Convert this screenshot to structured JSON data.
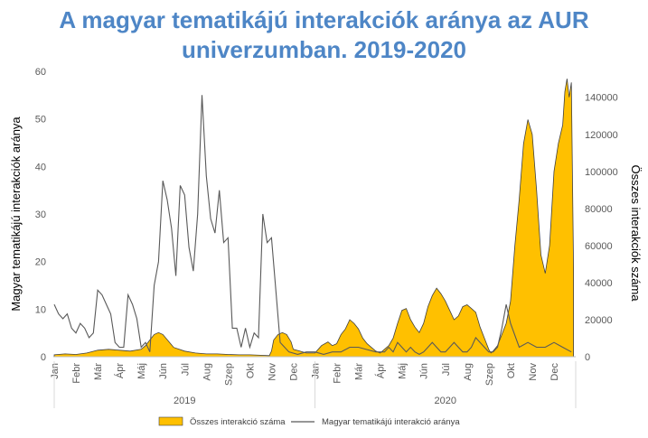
{
  "title": {
    "line1": "A magyar tematikájú interakciók aránya az AUR",
    "line2": "univerzumban. 2019-2020",
    "color": "#4E86C6"
  },
  "chart_data": {
    "type": "line",
    "ylabel_left": "Magyar tematikájú interakciók aránya",
    "ylabel_right": "Összes interakciók száma",
    "ylim_left": [
      0,
      60
    ],
    "ylim_right": [
      0,
      154000
    ],
    "yticks_left": [
      "0",
      "10",
      "20",
      "30",
      "40",
      "50",
      "60"
    ],
    "yticks_right": [
      "0",
      "20000",
      "40000",
      "60000",
      "80000",
      "100000",
      "120000",
      "140000"
    ],
    "months": [
      "Jan",
      "Febr",
      "Már",
      "Ápr",
      "Máj",
      "Jún",
      "Júl",
      "Aug",
      "Szep",
      "Okt",
      "Nov",
      "Dec",
      "Jan",
      "Febr",
      "Már",
      "Ápr",
      "Máj",
      "Jún",
      "Júl",
      "Aug",
      "Szep",
      "Okt",
      "Nov",
      "Dec"
    ],
    "years": [
      "2019",
      "2020"
    ],
    "legend_position": "bottom",
    "grid": false,
    "series": [
      {
        "name": "Összes interakció száma",
        "kind": "area",
        "axis": "right",
        "color": "#FFC000",
        "x": [
          0,
          0.5,
          1,
          1.5,
          2,
          2.5,
          3,
          3.5,
          4,
          4.2,
          4.4,
          4.6,
          4.8,
          5,
          5.5,
          6,
          6.5,
          7,
          7.5,
          8,
          8.5,
          9,
          9.5,
          9.9,
          10,
          10.1,
          10.3,
          10.5,
          10.7,
          10.9,
          11,
          11.3,
          11.6,
          12,
          12.3,
          12.6,
          12.8,
          13,
          13.2,
          13.4,
          13.6,
          13.8,
          14,
          14.2,
          14.4,
          14.6,
          14.8,
          15,
          15.2,
          15.4,
          15.6,
          15.8,
          16,
          16.2,
          16.4,
          16.6,
          16.8,
          17,
          17.2,
          17.4,
          17.6,
          17.8,
          18,
          18.2,
          18.4,
          18.6,
          18.8,
          19,
          19.2,
          19.4,
          19.6,
          19.8,
          20,
          20.1,
          20.2,
          20.4,
          20.6,
          20.8,
          21,
          21.2,
          21.4,
          21.6,
          21.8,
          22,
          22.2,
          22.4,
          22.6,
          22.8,
          23,
          23.2,
          23.4,
          23.5,
          23.6,
          23.7,
          23.8
        ],
        "values": [
          1000,
          1500,
          1200,
          2000,
          3500,
          4000,
          3500,
          3000,
          4000,
          6000,
          9000,
          12000,
          13000,
          12000,
          5000,
          3000,
          2000,
          1500,
          1500,
          1200,
          1000,
          1000,
          800,
          600,
          3000,
          9000,
          12000,
          13000,
          12000,
          8000,
          4000,
          3000,
          2000,
          2000,
          6000,
          8000,
          6000,
          7000,
          12000,
          15000,
          20000,
          18000,
          15000,
          10000,
          7000,
          5000,
          3000,
          2000,
          4000,
          6000,
          10000,
          18000,
          25000,
          26000,
          20000,
          16000,
          13000,
          18000,
          27000,
          33000,
          37000,
          34000,
          30000,
          25000,
          20000,
          22000,
          27000,
          28000,
          26000,
          24000,
          16000,
          10000,
          4000,
          2000,
          3000,
          6000,
          12000,
          18000,
          30000,
          60000,
          85000,
          115000,
          128000,
          120000,
          90000,
          55000,
          45000,
          60000,
          100000,
          115000,
          125000,
          143000,
          150000,
          140000,
          148000
        ],
        "end_x": 23.9,
        "end_value": 48000
      },
      {
        "name": "Magyar tematikájú interakció aránya",
        "kind": "line",
        "axis": "left",
        "color": "#595959",
        "x": [
          0,
          0.2,
          0.4,
          0.6,
          0.8,
          1,
          1.2,
          1.4,
          1.6,
          1.8,
          2,
          2.2,
          2.4,
          2.6,
          2.8,
          3,
          3.2,
          3.4,
          3.6,
          3.8,
          4,
          4.2,
          4.4,
          4.6,
          4.8,
          5,
          5.2,
          5.4,
          5.6,
          5.8,
          6,
          6.2,
          6.4,
          6.6,
          6.8,
          7,
          7.2,
          7.4,
          7.6,
          7.8,
          8,
          8.2,
          8.4,
          8.6,
          8.8,
          9,
          9.2,
          9.4,
          9.6,
          9.8,
          10,
          10.4,
          10.8,
          11.2,
          11.6,
          12,
          12.4,
          12.8,
          13.2,
          13.6,
          14,
          14.4,
          14.8,
          15,
          15.2,
          15.4,
          15.6,
          15.8,
          16,
          16.2,
          16.4,
          16.6,
          16.8,
          17,
          17.2,
          17.4,
          17.6,
          17.8,
          18,
          18.2,
          18.4,
          18.6,
          18.8,
          19,
          19.2,
          19.4,
          19.6,
          19.8,
          20,
          20.2,
          20.4,
          20.6,
          20.8,
          21,
          21.4,
          21.8,
          22.2,
          22.6,
          23,
          23.4,
          23.8
        ],
        "values": [
          11,
          9,
          8,
          9,
          6,
          5,
          7,
          6,
          4,
          5,
          14,
          13,
          11,
          9,
          3,
          2,
          2,
          13,
          11,
          8,
          2,
          3,
          1,
          15,
          20,
          37,
          33,
          27,
          17,
          36,
          34,
          23,
          18,
          30,
          55,
          38,
          29,
          26,
          35,
          24,
          25,
          6,
          6,
          2,
          6,
          2,
          5,
          4,
          30,
          24,
          25,
          3,
          1,
          0.5,
          1,
          1,
          0.5,
          1,
          1,
          2,
          2,
          1.5,
          1,
          1,
          1,
          2,
          1,
          3,
          2,
          1,
          2,
          1,
          0.5,
          1,
          2,
          3,
          2,
          1,
          1,
          2,
          3,
          2,
          1,
          1,
          2,
          4,
          3,
          2,
          1,
          1,
          2,
          6,
          11,
          7,
          2,
          3,
          2,
          2,
          3,
          2,
          1
        ]
      }
    ]
  }
}
